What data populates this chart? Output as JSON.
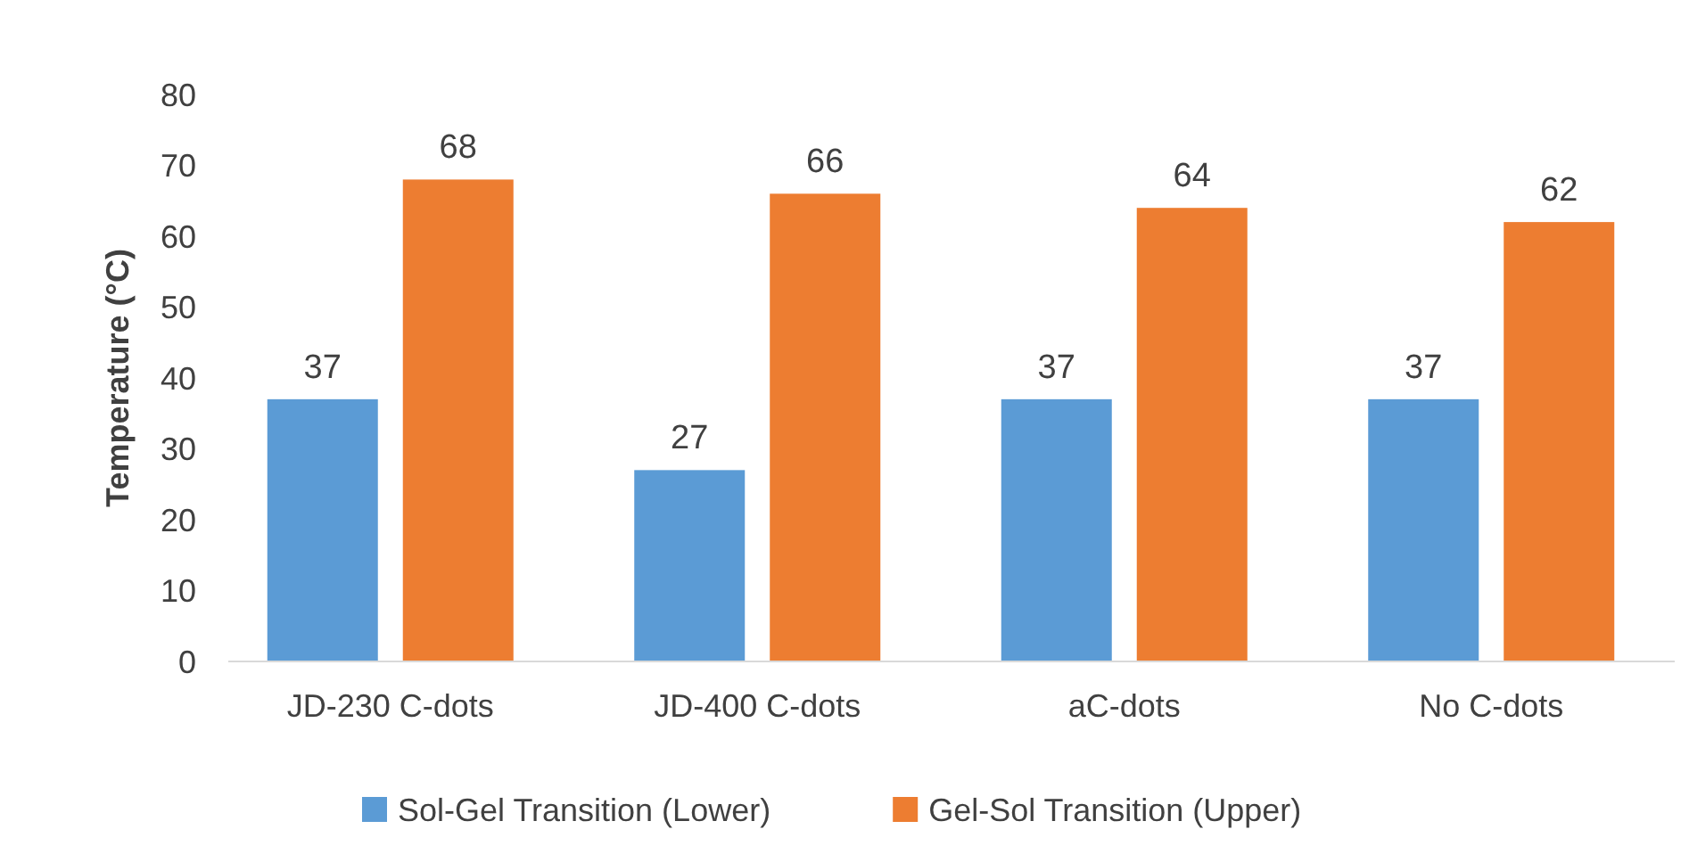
{
  "chart_data": {
    "type": "bar",
    "ylabel": "Temperature (°C)",
    "categories": [
      "JD-230 C-dots",
      "JD-400 C-dots",
      "aC-dots",
      "No C-dots"
    ],
    "series": [
      {
        "name": "Sol-Gel Transition (Lower)",
        "color": "#5b9bd5",
        "values": [
          37,
          27,
          37,
          37
        ]
      },
      {
        "name": "Gel-Sol Transition (Upper)",
        "color": "#ed7d31",
        "values": [
          68,
          66,
          64,
          62
        ]
      }
    ],
    "ylim": [
      0,
      80
    ],
    "yticks": [
      0,
      10,
      20,
      30,
      40,
      50,
      60,
      70,
      80
    ],
    "data_labels": true,
    "legend": "bottom",
    "grid": false
  }
}
